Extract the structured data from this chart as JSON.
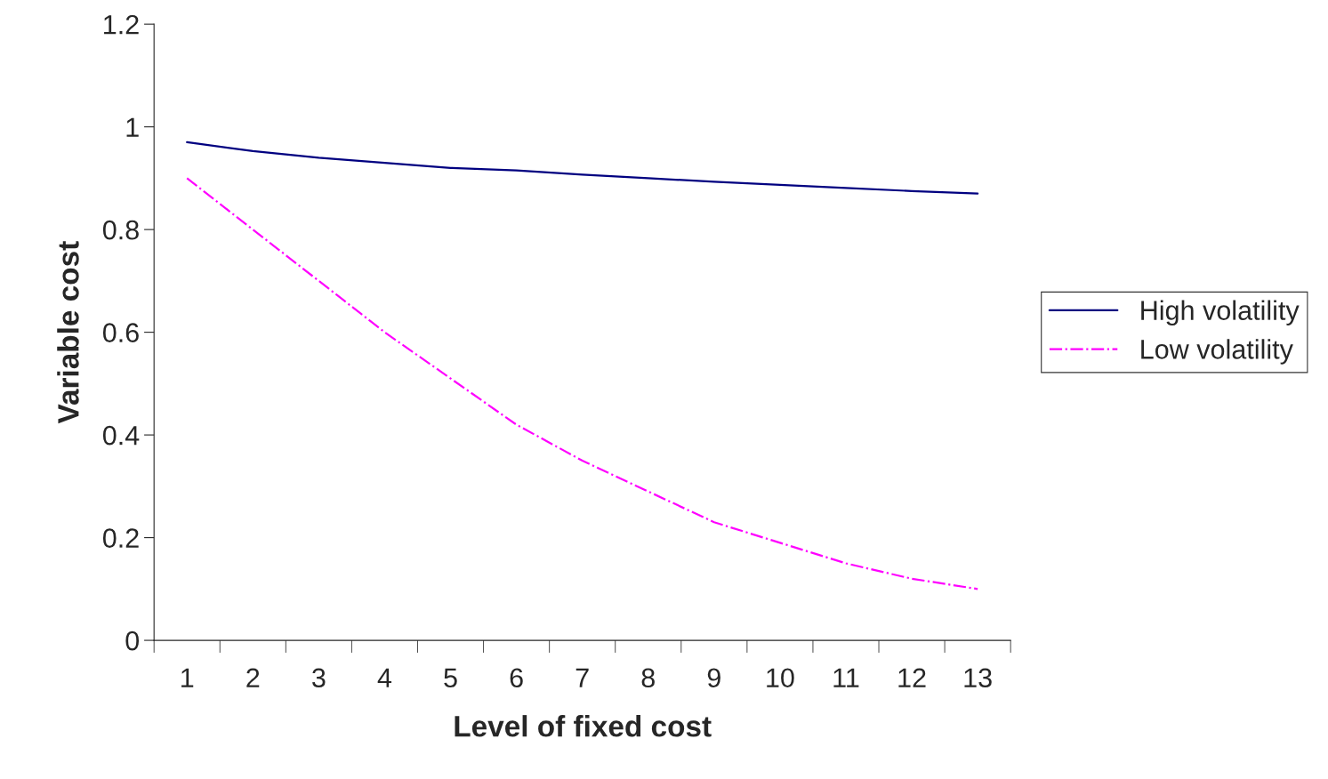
{
  "chart_data": {
    "type": "line",
    "xlabel": "Level of fixed cost",
    "ylabel": "Variable cost",
    "categories": [
      "1",
      "2",
      "3",
      "4",
      "5",
      "6",
      "7",
      "8",
      "9",
      "10",
      "11",
      "12",
      "13"
    ],
    "series": [
      {
        "name": "High volatility",
        "color": "#000080",
        "line_style": "solid",
        "values": [
          0.97,
          0.953,
          0.94,
          0.93,
          0.92,
          0.915,
          0.907,
          0.9,
          0.893,
          0.887,
          0.881,
          0.875,
          0.87
        ]
      },
      {
        "name": "Low volatility",
        "color": "#ff00ff",
        "line_style": "dashdot",
        "values": [
          0.9,
          0.8,
          0.7,
          0.6,
          0.51,
          0.42,
          0.35,
          0.29,
          0.23,
          0.19,
          0.15,
          0.12,
          0.1
        ]
      }
    ],
    "ylim": [
      0,
      1.2
    ],
    "yticks": [
      0,
      0.2,
      0.4,
      0.6,
      0.8,
      1,
      1.2
    ],
    "grid": false,
    "legend": "right",
    "marker": "none"
  }
}
